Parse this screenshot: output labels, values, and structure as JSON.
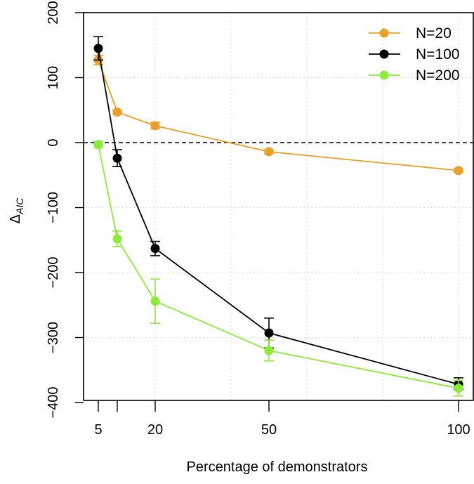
{
  "chart_data": {
    "type": "line",
    "title": "",
    "xlabel": "Percentage of demonstrators",
    "ylabel_main": "Δ",
    "ylabel_sub": "AIC",
    "x": [
      5,
      10,
      20,
      50,
      100
    ],
    "xticks": [
      5,
      10,
      20,
      50,
      100
    ],
    "xtick_labels": [
      "5",
      "",
      "20",
      "50",
      "100"
    ],
    "xlim": [
      0,
      104
    ],
    "x_gridlines": [
      0,
      20,
      40,
      60,
      80,
      100
    ],
    "ylim": [
      -400,
      200
    ],
    "yticks": [
      200,
      100,
      0,
      -100,
      -200,
      -300,
      -400
    ],
    "ytick_labels": [
      "200",
      "100",
      "0",
      "−100",
      "−200",
      "−300",
      "−400"
    ],
    "y_gridlines": [
      200,
      100,
      -100,
      -200,
      -300
    ],
    "reference_line": {
      "y": 0,
      "style": "dashed",
      "color": "#000000"
    },
    "grid": true,
    "legend_position": "top-right",
    "series": [
      {
        "name": "N=20",
        "color": "#E8A02A",
        "values": [
          127,
          47,
          26,
          -14,
          -43
        ],
        "err_low": [
          120,
          44,
          21,
          -17,
          -46
        ],
        "err_high": [
          134,
          50,
          31,
          -11,
          -40
        ]
      },
      {
        "name": "N=100",
        "color": "#000000",
        "values": [
          145,
          -24,
          -163,
          -293,
          -372
        ],
        "err_low": [
          127,
          -37,
          -174,
          -316,
          -380
        ],
        "err_high": [
          163,
          -11,
          -152,
          -270,
          -362
        ]
      },
      {
        "name": "N=200",
        "color": "#8BEA3A",
        "values": [
          -3,
          -148,
          -244,
          -320,
          -378
        ],
        "err_low": [
          -8,
          -160,
          -278,
          -336,
          -390
        ],
        "err_high": [
          2,
          -136,
          -210,
          -304,
          -366
        ]
      }
    ]
  }
}
